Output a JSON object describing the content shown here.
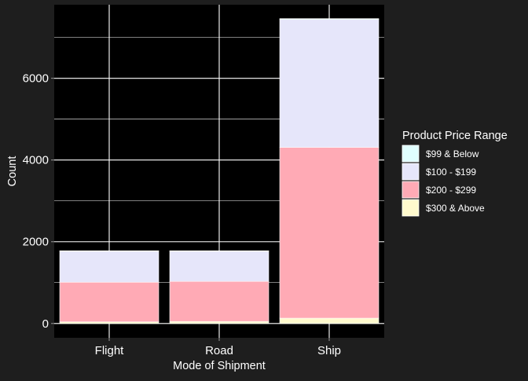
{
  "chart_data": {
    "type": "bar",
    "stacked": true,
    "categories": [
      "Flight",
      "Road",
      "Ship"
    ],
    "series": [
      {
        "name": "$99 & Below",
        "values": [
          10,
          10,
          20
        ],
        "color": "#e0ffff"
      },
      {
        "name": "$100 - $199",
        "values": [
          760,
          740,
          3130
        ],
        "color": "#e6e6fa"
      },
      {
        "name": "$200 - $299",
        "values": [
          970,
          980,
          4180
        ],
        "color": "#ffaab5"
      },
      {
        "name": "$300 & Above",
        "values": [
          40,
          50,
          130
        ],
        "color": "#fffacd"
      }
    ],
    "stack_order_bottom_to_top": [
      "$300 & Above",
      "$200 - $299",
      "$100 - $199",
      "$99 & Below"
    ],
    "xlabel": "Mode of Shipment",
    "ylabel": "Count",
    "ylim": [
      -350,
      7800
    ],
    "yticks": [
      0,
      2000,
      4000,
      6000
    ],
    "grid": true,
    "legend": {
      "title": "Product Price Range",
      "position": "right"
    },
    "colors": {
      "background": "#1e1e1e",
      "panel": "#000000",
      "grid": "#ffffff",
      "text": "#ffffff"
    }
  }
}
